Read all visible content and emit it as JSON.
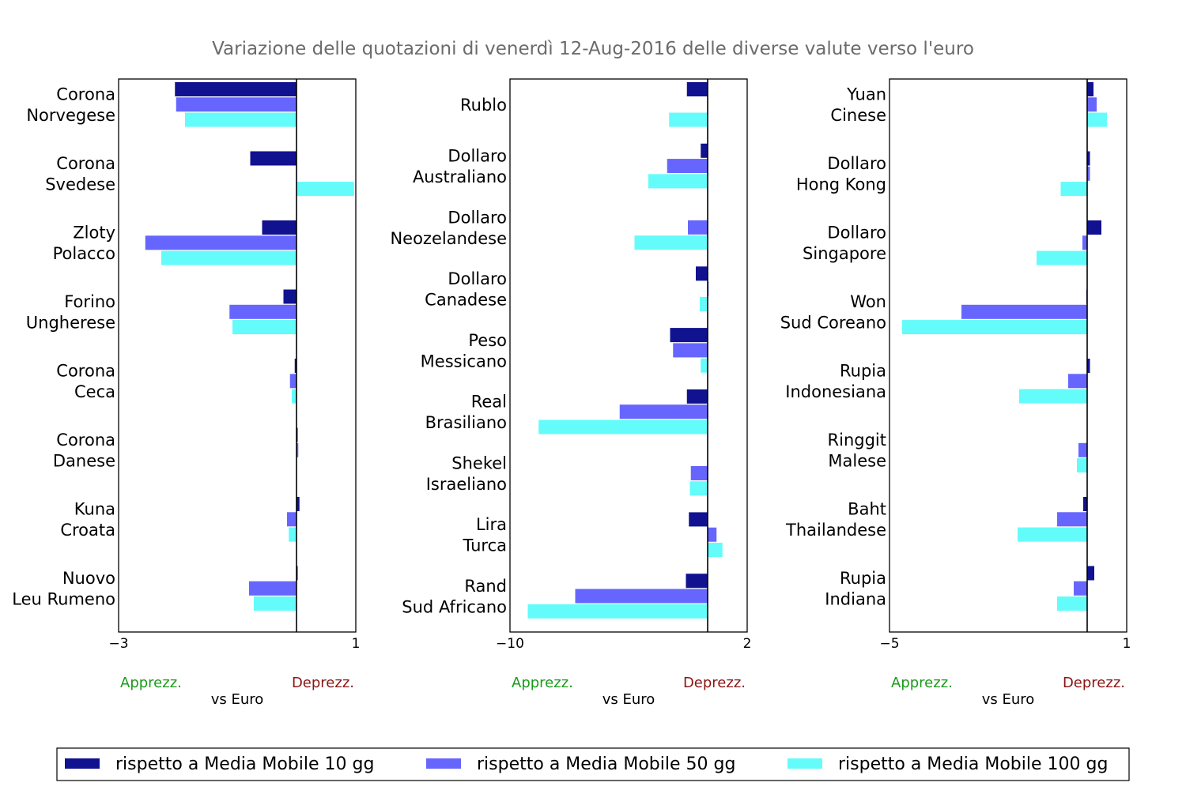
{
  "colors": {
    "series": [
      "#11128f",
      "#6666ff",
      "#63fcfb"
    ],
    "apprezz": "#1a9b1a",
    "deprezz": "#8b1414",
    "title": "#6b6b6b"
  },
  "chart_data": {
    "type": "bar",
    "orientation": "horizontal",
    "title": "Variazione delle quotazioni di venerdì 12-Aug-2016 delle diverse valute verso l'euro",
    "xlabel": "vs Euro",
    "direction_labels": {
      "left": "Apprezz.",
      "right": "Deprezz."
    },
    "legend_placement": "bottom",
    "grid": false,
    "series_names": [
      "rispetto a Media Mobile 10 gg",
      "rispetto a Media Mobile 50 gg",
      "rispetto a Media Mobile 100 gg"
    ],
    "panels": [
      {
        "xlim": [
          -3,
          1
        ],
        "ticks": [
          "−3",
          "1"
        ],
        "categories": [
          [
            "Corona",
            "Norvegese"
          ],
          [
            "Corona",
            "Svedese"
          ],
          [
            "Zloty",
            "Polacco"
          ],
          [
            "Forino",
            "Ungherese"
          ],
          [
            "Corona",
            "Ceca"
          ],
          [
            "Corona",
            "Danese"
          ],
          [
            "Kuna",
            "Croata"
          ],
          [
            "Nuovo",
            "Leu Rumeno"
          ]
        ],
        "values": [
          [
            -2.05,
            -2.03,
            -1.88
          ],
          [
            -0.78,
            0,
            0.97
          ],
          [
            -0.58,
            -2.55,
            -2.28
          ],
          [
            -0.22,
            -1.13,
            -1.08
          ],
          [
            -0.03,
            -0.11,
            -0.08
          ],
          [
            0.02,
            0.03,
            0
          ],
          [
            0.05,
            -0.16,
            -0.13
          ],
          [
            0.02,
            -0.8,
            -0.72
          ]
        ]
      },
      {
        "xlim": [
          -10,
          2
        ],
        "ticks": [
          "−10",
          "2"
        ],
        "categories": [
          [
            "Rublo"
          ],
          [
            "Dollaro",
            "Australiano"
          ],
          [
            "Dollaro",
            "Neozelandese"
          ],
          [
            "Dollaro",
            "Canadese"
          ],
          [
            "Peso",
            "Messicano"
          ],
          [
            "Real",
            "Brasiliano"
          ],
          [
            "Shekel",
            "Israeliano"
          ],
          [
            "Lira",
            "Turca"
          ],
          [
            "Rand",
            "Sud Africano"
          ]
        ],
        "values": [
          [
            -1.05,
            0,
            -1.95
          ],
          [
            -0.35,
            -2.05,
            -3.0
          ],
          [
            0,
            -1.0,
            -3.7
          ],
          [
            -0.6,
            0.05,
            -0.4
          ],
          [
            -1.9,
            -1.75,
            -0.35
          ],
          [
            -1.05,
            -4.45,
            -8.55
          ],
          [
            -0.02,
            -0.85,
            -0.9
          ],
          [
            -0.95,
            0.45,
            0.75
          ],
          [
            -1.1,
            -6.7,
            -9.1
          ]
        ]
      },
      {
        "xlim": [
          -5,
          1
        ],
        "ticks": [
          "−5",
          "1"
        ],
        "categories": [
          [
            "Yuan",
            "Cinese"
          ],
          [
            "Dollaro",
            "Hong Kong"
          ],
          [
            "Dollaro",
            "Singapore"
          ],
          [
            "Won",
            "Sud Coreano"
          ],
          [
            "Rupia",
            "Indonesiana"
          ],
          [
            "Ringgit",
            "Malese"
          ],
          [
            "Baht",
            "Thailandese"
          ],
          [
            "Rupia",
            "Indiana"
          ]
        ],
        "values": [
          [
            0.16,
            0.24,
            0.5
          ],
          [
            0.07,
            0.07,
            -0.67
          ],
          [
            0.36,
            -0.12,
            -1.28
          ],
          [
            -0.02,
            -3.18,
            -4.68
          ],
          [
            0.07,
            -0.48,
            -1.72
          ],
          [
            0,
            -0.22,
            -0.26
          ],
          [
            -0.1,
            -0.76,
            -1.76
          ],
          [
            0.18,
            -0.34,
            -0.76
          ]
        ]
      }
    ]
  }
}
